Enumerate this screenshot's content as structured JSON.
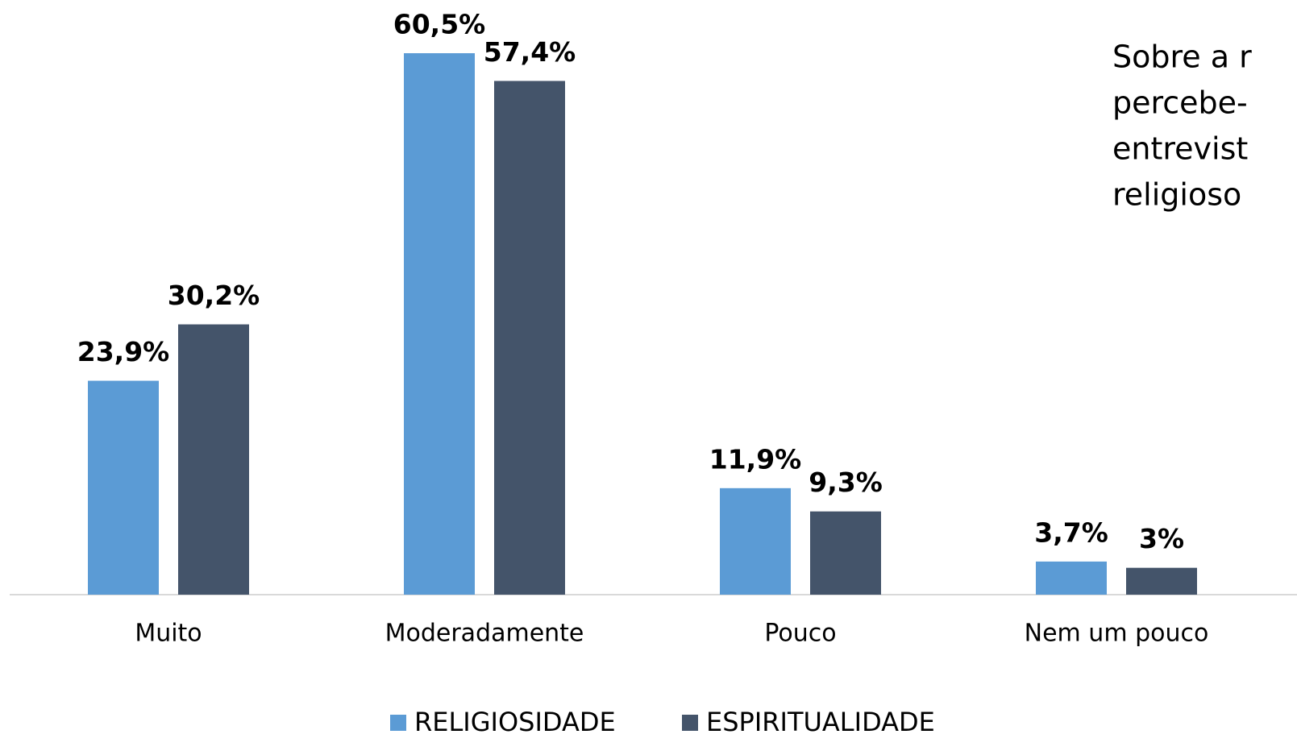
{
  "chart_data": {
    "type": "bar",
    "categories": [
      "Muito",
      "Moderadamente",
      "Pouco",
      "Nem um pouco"
    ],
    "series": [
      {
        "name": "RELIGIOSIDADE",
        "color": "#5b9bd5",
        "values": [
          23.9,
          60.5,
          11.9,
          3.7
        ],
        "value_labels": [
          "23,9%",
          "60,5%",
          "11,9%",
          "3,7%"
        ]
      },
      {
        "name": "ESPIRITUALIDADE",
        "color": "#44546a",
        "values": [
          30.2,
          57.4,
          9.3,
          3
        ],
        "value_labels": [
          "30,2%",
          "57,4%",
          "9,3%",
          "3%"
        ]
      }
    ],
    "annotation": [
      "Sobre a r",
      "percebe-",
      "entrevist",
      "religioso"
    ],
    "legend": "bottom"
  }
}
